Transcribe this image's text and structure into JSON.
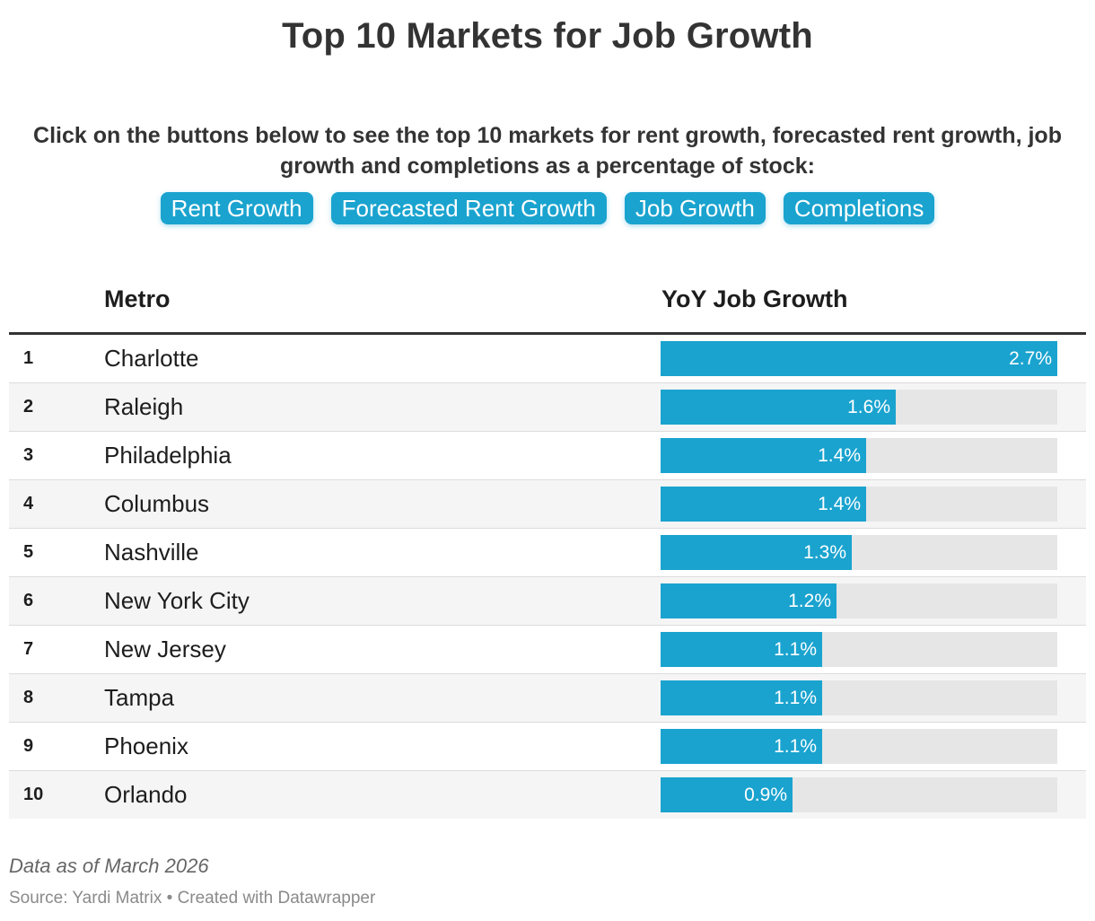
{
  "title": "Top 10 Markets for Job Growth",
  "intro": "Click on the buttons below to see the top 10 markets for rent growth, forecasted rent growth, job growth and completions as a percentage of stock:",
  "buttons": [
    "Rent Growth",
    "Forecasted Rent Growth",
    "Job Growth",
    "Completions"
  ],
  "colors": {
    "accent": "#1aa3cf",
    "track": "#e6e6e6"
  },
  "chart_data": {
    "type": "table",
    "columns": [
      "Metro",
      "YoY Job Growth"
    ],
    "max_value": 2.7,
    "rows": [
      {
        "rank": "1",
        "metro": "Charlotte",
        "value": 2.7,
        "label": "2.7%"
      },
      {
        "rank": "2",
        "metro": "Raleigh",
        "value": 1.6,
        "label": "1.6%"
      },
      {
        "rank": "3",
        "metro": "Philadelphia",
        "value": 1.4,
        "label": "1.4%"
      },
      {
        "rank": "4",
        "metro": "Columbus",
        "value": 1.4,
        "label": "1.4%"
      },
      {
        "rank": "5",
        "metro": "Nashville",
        "value": 1.3,
        "label": "1.3%"
      },
      {
        "rank": "6",
        "metro": "New York City",
        "value": 1.2,
        "label": "1.2%"
      },
      {
        "rank": "7",
        "metro": "New Jersey",
        "value": 1.1,
        "label": "1.1%"
      },
      {
        "rank": "8",
        "metro": "Tampa",
        "value": 1.1,
        "label": "1.1%"
      },
      {
        "rank": "9",
        "metro": "Phoenix",
        "value": 1.1,
        "label": "1.1%"
      },
      {
        "rank": "10",
        "metro": "Orlando",
        "value": 0.9,
        "label": "0.9%"
      }
    ]
  },
  "footer": {
    "note": "Data as of March 2026",
    "source": "Source: Yardi Matrix • Created with Datawrapper"
  }
}
